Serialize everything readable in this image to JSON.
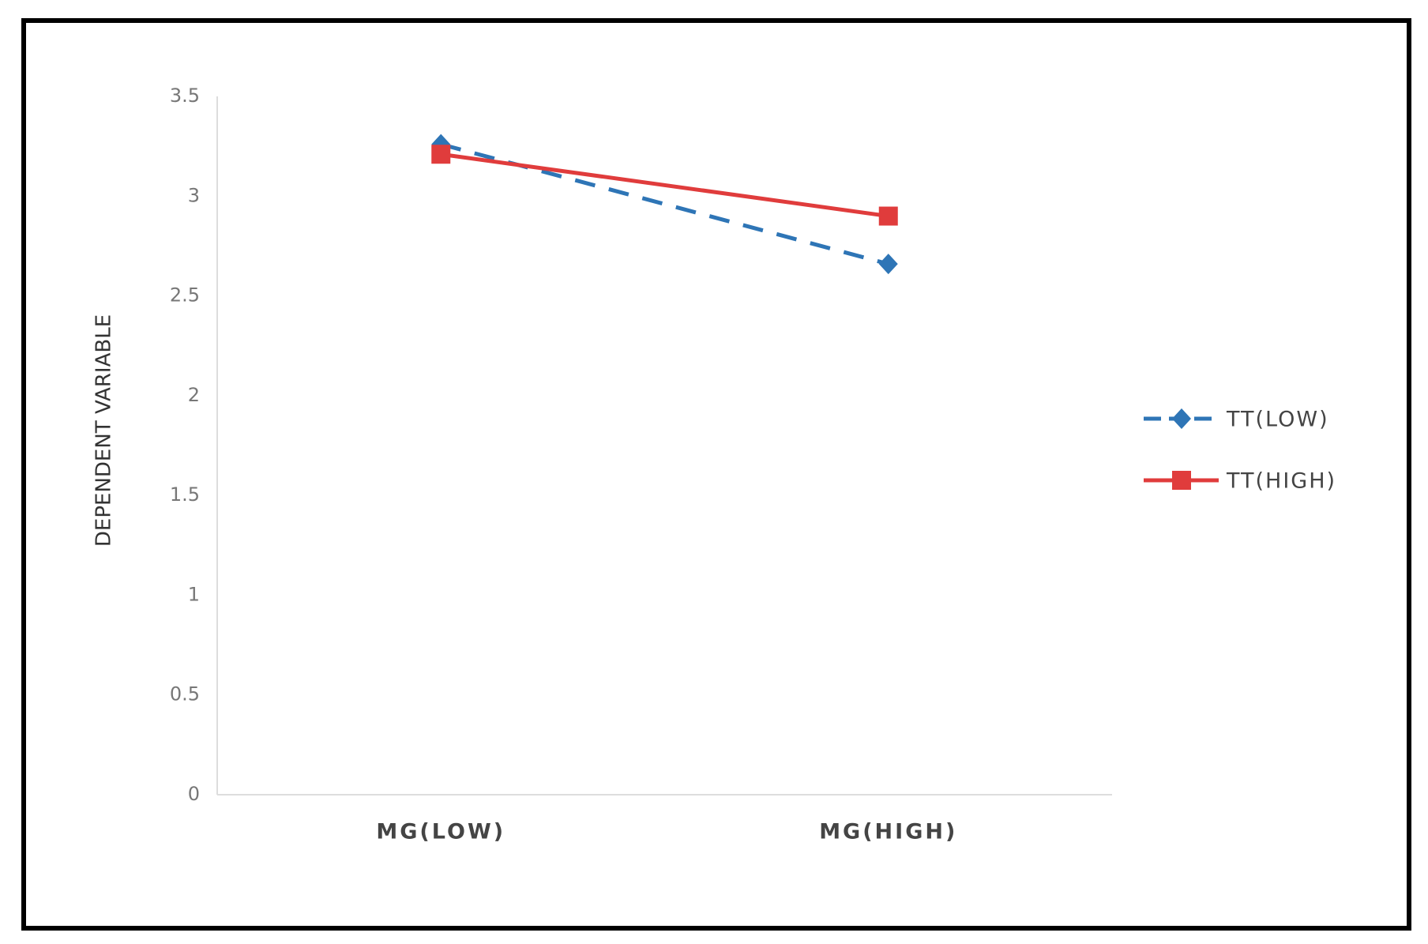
{
  "chart_data": {
    "type": "line",
    "y_label": "DEPENDENT VARIABLE",
    "categories": [
      "MG(LOW)",
      "MG(HIGH)"
    ],
    "series": [
      {
        "name": "TT(LOW)",
        "color": "#2e75b6",
        "dashed": true,
        "marker": "diamond",
        "values": [
          3.26,
          2.66
        ]
      },
      {
        "name": "TT(HIGH)",
        "color": "#e03c3c",
        "dashed": false,
        "marker": "square",
        "values": [
          3.21,
          2.9
        ]
      }
    ],
    "ylim": [
      0,
      3.5
    ],
    "yticks": [
      0,
      0.5,
      1,
      1.5,
      2,
      2.5,
      3,
      3.5
    ],
    "grid": false,
    "legend": "right"
  }
}
